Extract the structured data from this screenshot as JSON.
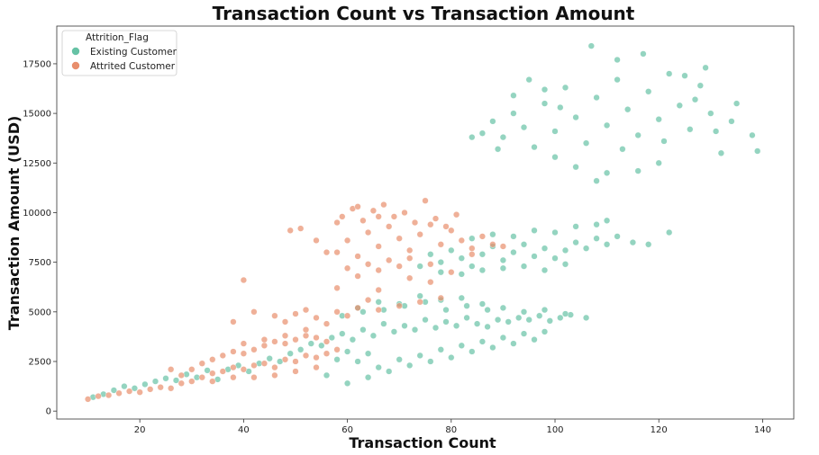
{
  "chart_data": {
    "type": "scatter",
    "title": "Transaction Count vs Transaction Amount",
    "xlabel": "Transaction Count",
    "ylabel": "Transaction Amount (USD)",
    "xlim": [
      4,
      146
    ],
    "ylim": [
      -400,
      19400
    ],
    "xticks": [
      20,
      40,
      60,
      80,
      100,
      120,
      140
    ],
    "yticks": [
      0,
      2500,
      5000,
      7500,
      10000,
      12500,
      15000,
      17500
    ],
    "grid": false,
    "legend": {
      "title": "Attrition_Flag",
      "placement": "top-left"
    },
    "series": [
      {
        "name": "Existing Customer",
        "color": "#66c2a5",
        "values": [
          [
            11,
            700
          ],
          [
            13,
            850
          ],
          [
            15,
            1050
          ],
          [
            17,
            1250
          ],
          [
            19,
            1150
          ],
          [
            21,
            1350
          ],
          [
            23,
            1500
          ],
          [
            25,
            1650
          ],
          [
            27,
            1550
          ],
          [
            29,
            1850
          ],
          [
            31,
            1700
          ],
          [
            33,
            2050
          ],
          [
            35,
            1600
          ],
          [
            37,
            2100
          ],
          [
            39,
            2300
          ],
          [
            41,
            2000
          ],
          [
            43,
            2400
          ],
          [
            45,
            2650
          ],
          [
            47,
            2500
          ],
          [
            49,
            2900
          ],
          [
            51,
            3100
          ],
          [
            53,
            3400
          ],
          [
            55,
            3300
          ],
          [
            57,
            3700
          ],
          [
            59,
            3900
          ],
          [
            61,
            3600
          ],
          [
            63,
            4100
          ],
          [
            65,
            3800
          ],
          [
            67,
            4400
          ],
          [
            69,
            4000
          ],
          [
            71,
            4300
          ],
          [
            73,
            4100
          ],
          [
            75,
            4600
          ],
          [
            77,
            4200
          ],
          [
            79,
            4500
          ],
          [
            81,
            4300
          ],
          [
            83,
            4700
          ],
          [
            85,
            4400
          ],
          [
            87,
            4250
          ],
          [
            89,
            4600
          ],
          [
            91,
            4500
          ],
          [
            93,
            4700
          ],
          [
            95,
            4600
          ],
          [
            97,
            4800
          ],
          [
            99,
            4550
          ],
          [
            101,
            4700
          ],
          [
            103,
            4850
          ],
          [
            58,
            2600
          ],
          [
            60,
            3000
          ],
          [
            62,
            2500
          ],
          [
            64,
            2900
          ],
          [
            66,
            2200
          ],
          [
            70,
            2600
          ],
          [
            74,
            2800
          ],
          [
            78,
            3100
          ],
          [
            82,
            3300
          ],
          [
            86,
            3500
          ],
          [
            90,
            3700
          ],
          [
            94,
            3900
          ],
          [
            98,
            4000
          ],
          [
            56,
            1800
          ],
          [
            60,
            1400
          ],
          [
            64,
            1700
          ],
          [
            68,
            2000
          ],
          [
            72,
            2300
          ],
          [
            76,
            2500
          ],
          [
            80,
            2700
          ],
          [
            84,
            3000
          ],
          [
            88,
            3200
          ],
          [
            92,
            3400
          ],
          [
            96,
            3600
          ],
          [
            62,
            5200
          ],
          [
            66,
            5500
          ],
          [
            70,
            5400
          ],
          [
            74,
            5800
          ],
          [
            78,
            5600
          ],
          [
            82,
            5700
          ],
          [
            86,
            5400
          ],
          [
            90,
            5200
          ],
          [
            94,
            5000
          ],
          [
            98,
            5100
          ],
          [
            102,
            4900
          ],
          [
            106,
            4700
          ],
          [
            59,
            4800
          ],
          [
            63,
            5000
          ],
          [
            67,
            5100
          ],
          [
            71,
            5300
          ],
          [
            75,
            5500
          ],
          [
            79,
            5100
          ],
          [
            83,
            5300
          ],
          [
            87,
            5100
          ],
          [
            74,
            7300
          ],
          [
            76,
            7900
          ],
          [
            78,
            7500
          ],
          [
            80,
            8100
          ],
          [
            82,
            7700
          ],
          [
            84,
            7300
          ],
          [
            86,
            7900
          ],
          [
            88,
            8300
          ],
          [
            90,
            7600
          ],
          [
            92,
            8000
          ],
          [
            94,
            8400
          ],
          [
            96,
            7800
          ],
          [
            98,
            8200
          ],
          [
            100,
            7700
          ],
          [
            102,
            8100
          ],
          [
            104,
            8500
          ],
          [
            106,
            8200
          ],
          [
            108,
            8700
          ],
          [
            110,
            8400
          ],
          [
            112,
            8800
          ],
          [
            115,
            8500
          ],
          [
            118,
            8400
          ],
          [
            122,
            9000
          ],
          [
            78,
            7000
          ],
          [
            82,
            6900
          ],
          [
            86,
            7100
          ],
          [
            90,
            7200
          ],
          [
            94,
            7300
          ],
          [
            98,
            7100
          ],
          [
            102,
            7400
          ],
          [
            84,
            8700
          ],
          [
            88,
            8900
          ],
          [
            92,
            8800
          ],
          [
            96,
            9100
          ],
          [
            100,
            9000
          ],
          [
            104,
            9300
          ],
          [
            108,
            9400
          ],
          [
            110,
            9600
          ],
          [
            86,
            14000
          ],
          [
            88,
            14600
          ],
          [
            90,
            13800
          ],
          [
            92,
            15000
          ],
          [
            94,
            14300
          ],
          [
            96,
            13300
          ],
          [
            98,
            15500
          ],
          [
            100,
            14100
          ],
          [
            102,
            16300
          ],
          [
            104,
            14800
          ],
          [
            106,
            13500
          ],
          [
            108,
            15800
          ],
          [
            110,
            14400
          ],
          [
            112,
            16700
          ],
          [
            114,
            15200
          ],
          [
            116,
            13900
          ],
          [
            118,
            16100
          ],
          [
            120,
            14700
          ],
          [
            122,
            17000
          ],
          [
            124,
            15400
          ],
          [
            126,
            14200
          ],
          [
            128,
            16400
          ],
          [
            130,
            15000
          ],
          [
            132,
            13000
          ],
          [
            134,
            14600
          ],
          [
            138,
            13900
          ],
          [
            139,
            13100
          ],
          [
            107,
            18400
          ],
          [
            117,
            18000
          ],
          [
            129,
            17300
          ],
          [
            100,
            12800
          ],
          [
            104,
            12300
          ],
          [
            110,
            12000
          ],
          [
            116,
            12100
          ],
          [
            120,
            12500
          ],
          [
            108,
            11600
          ],
          [
            84,
            13800
          ],
          [
            95,
            16700
          ],
          [
            112,
            17700
          ],
          [
            125,
            16900
          ],
          [
            98,
            16200
          ],
          [
            92,
            15900
          ],
          [
            101,
            15300
          ],
          [
            113,
            13200
          ],
          [
            121,
            13600
          ],
          [
            127,
            15700
          ],
          [
            131,
            14100
          ],
          [
            89,
            13200
          ],
          [
            135,
            15500
          ]
        ]
      },
      {
        "name": "Attrited Customer",
        "color": "#e88e6c",
        "values": [
          [
            10,
            600
          ],
          [
            12,
            750
          ],
          [
            14,
            800
          ],
          [
            16,
            900
          ],
          [
            18,
            1000
          ],
          [
            20,
            950
          ],
          [
            22,
            1100
          ],
          [
            24,
            1200
          ],
          [
            26,
            1150
          ],
          [
            28,
            1400
          ],
          [
            30,
            1500
          ],
          [
            32,
            1700
          ],
          [
            34,
            1900
          ],
          [
            36,
            2000
          ],
          [
            38,
            2200
          ],
          [
            40,
            2100
          ],
          [
            42,
            2300
          ],
          [
            44,
            2400
          ],
          [
            46,
            2200
          ],
          [
            48,
            2600
          ],
          [
            50,
            2500
          ],
          [
            52,
            2800
          ],
          [
            54,
            2700
          ],
          [
            56,
            2900
          ],
          [
            58,
            3100
          ],
          [
            30,
            2100
          ],
          [
            32,
            2400
          ],
          [
            34,
            2600
          ],
          [
            36,
            2800
          ],
          [
            38,
            3000
          ],
          [
            40,
            2900
          ],
          [
            42,
            3100
          ],
          [
            44,
            3300
          ],
          [
            46,
            3500
          ],
          [
            48,
            3400
          ],
          [
            50,
            3600
          ],
          [
            52,
            3800
          ],
          [
            54,
            3700
          ],
          [
            56,
            3500
          ],
          [
            34,
            1500
          ],
          [
            38,
            1700
          ],
          [
            42,
            1700
          ],
          [
            46,
            1800
          ],
          [
            50,
            2000
          ],
          [
            54,
            2200
          ],
          [
            28,
            1800
          ],
          [
            26,
            2100
          ],
          [
            40,
            3400
          ],
          [
            44,
            3600
          ],
          [
            48,
            3800
          ],
          [
            52,
            4100
          ],
          [
            46,
            4800
          ],
          [
            50,
            4900
          ],
          [
            54,
            4700
          ],
          [
            58,
            5000
          ],
          [
            60,
            4800
          ],
          [
            62,
            5200
          ],
          [
            66,
            5100
          ],
          [
            70,
            5300
          ],
          [
            56,
            4400
          ],
          [
            48,
            4500
          ],
          [
            52,
            5100
          ],
          [
            58,
            8000
          ],
          [
            60,
            8600
          ],
          [
            62,
            7800
          ],
          [
            64,
            9000
          ],
          [
            66,
            8300
          ],
          [
            68,
            9300
          ],
          [
            70,
            8700
          ],
          [
            72,
            8100
          ],
          [
            74,
            8900
          ],
          [
            76,
            9400
          ],
          [
            78,
            8400
          ],
          [
            80,
            9100
          ],
          [
            82,
            8600
          ],
          [
            84,
            8200
          ],
          [
            86,
            8800
          ],
          [
            88,
            8400
          ],
          [
            60,
            7200
          ],
          [
            62,
            6800
          ],
          [
            64,
            7400
          ],
          [
            66,
            7100
          ],
          [
            68,
            7600
          ],
          [
            70,
            7300
          ],
          [
            72,
            7700
          ],
          [
            76,
            7400
          ],
          [
            59,
            9800
          ],
          [
            61,
            10200
          ],
          [
            63,
            9600
          ],
          [
            65,
            10100
          ],
          [
            67,
            10400
          ],
          [
            69,
            9800
          ],
          [
            71,
            10000
          ],
          [
            73,
            9500
          ],
          [
            75,
            10600
          ],
          [
            77,
            9700
          ],
          [
            79,
            9300
          ],
          [
            81,
            9900
          ],
          [
            51,
            9200
          ],
          [
            49,
            9100
          ],
          [
            58,
            9500
          ],
          [
            62,
            10300
          ],
          [
            56,
            8000
          ],
          [
            54,
            8600
          ],
          [
            40,
            6600
          ],
          [
            38,
            4500
          ],
          [
            42,
            5000
          ],
          [
            58,
            6200
          ],
          [
            66,
            6100
          ],
          [
            72,
            6700
          ],
          [
            76,
            6500
          ],
          [
            80,
            7000
          ],
          [
            84,
            7900
          ],
          [
            90,
            8300
          ],
          [
            74,
            5500
          ],
          [
            78,
            5700
          ],
          [
            64,
            5600
          ],
          [
            66,
            9800
          ]
        ]
      }
    ]
  }
}
